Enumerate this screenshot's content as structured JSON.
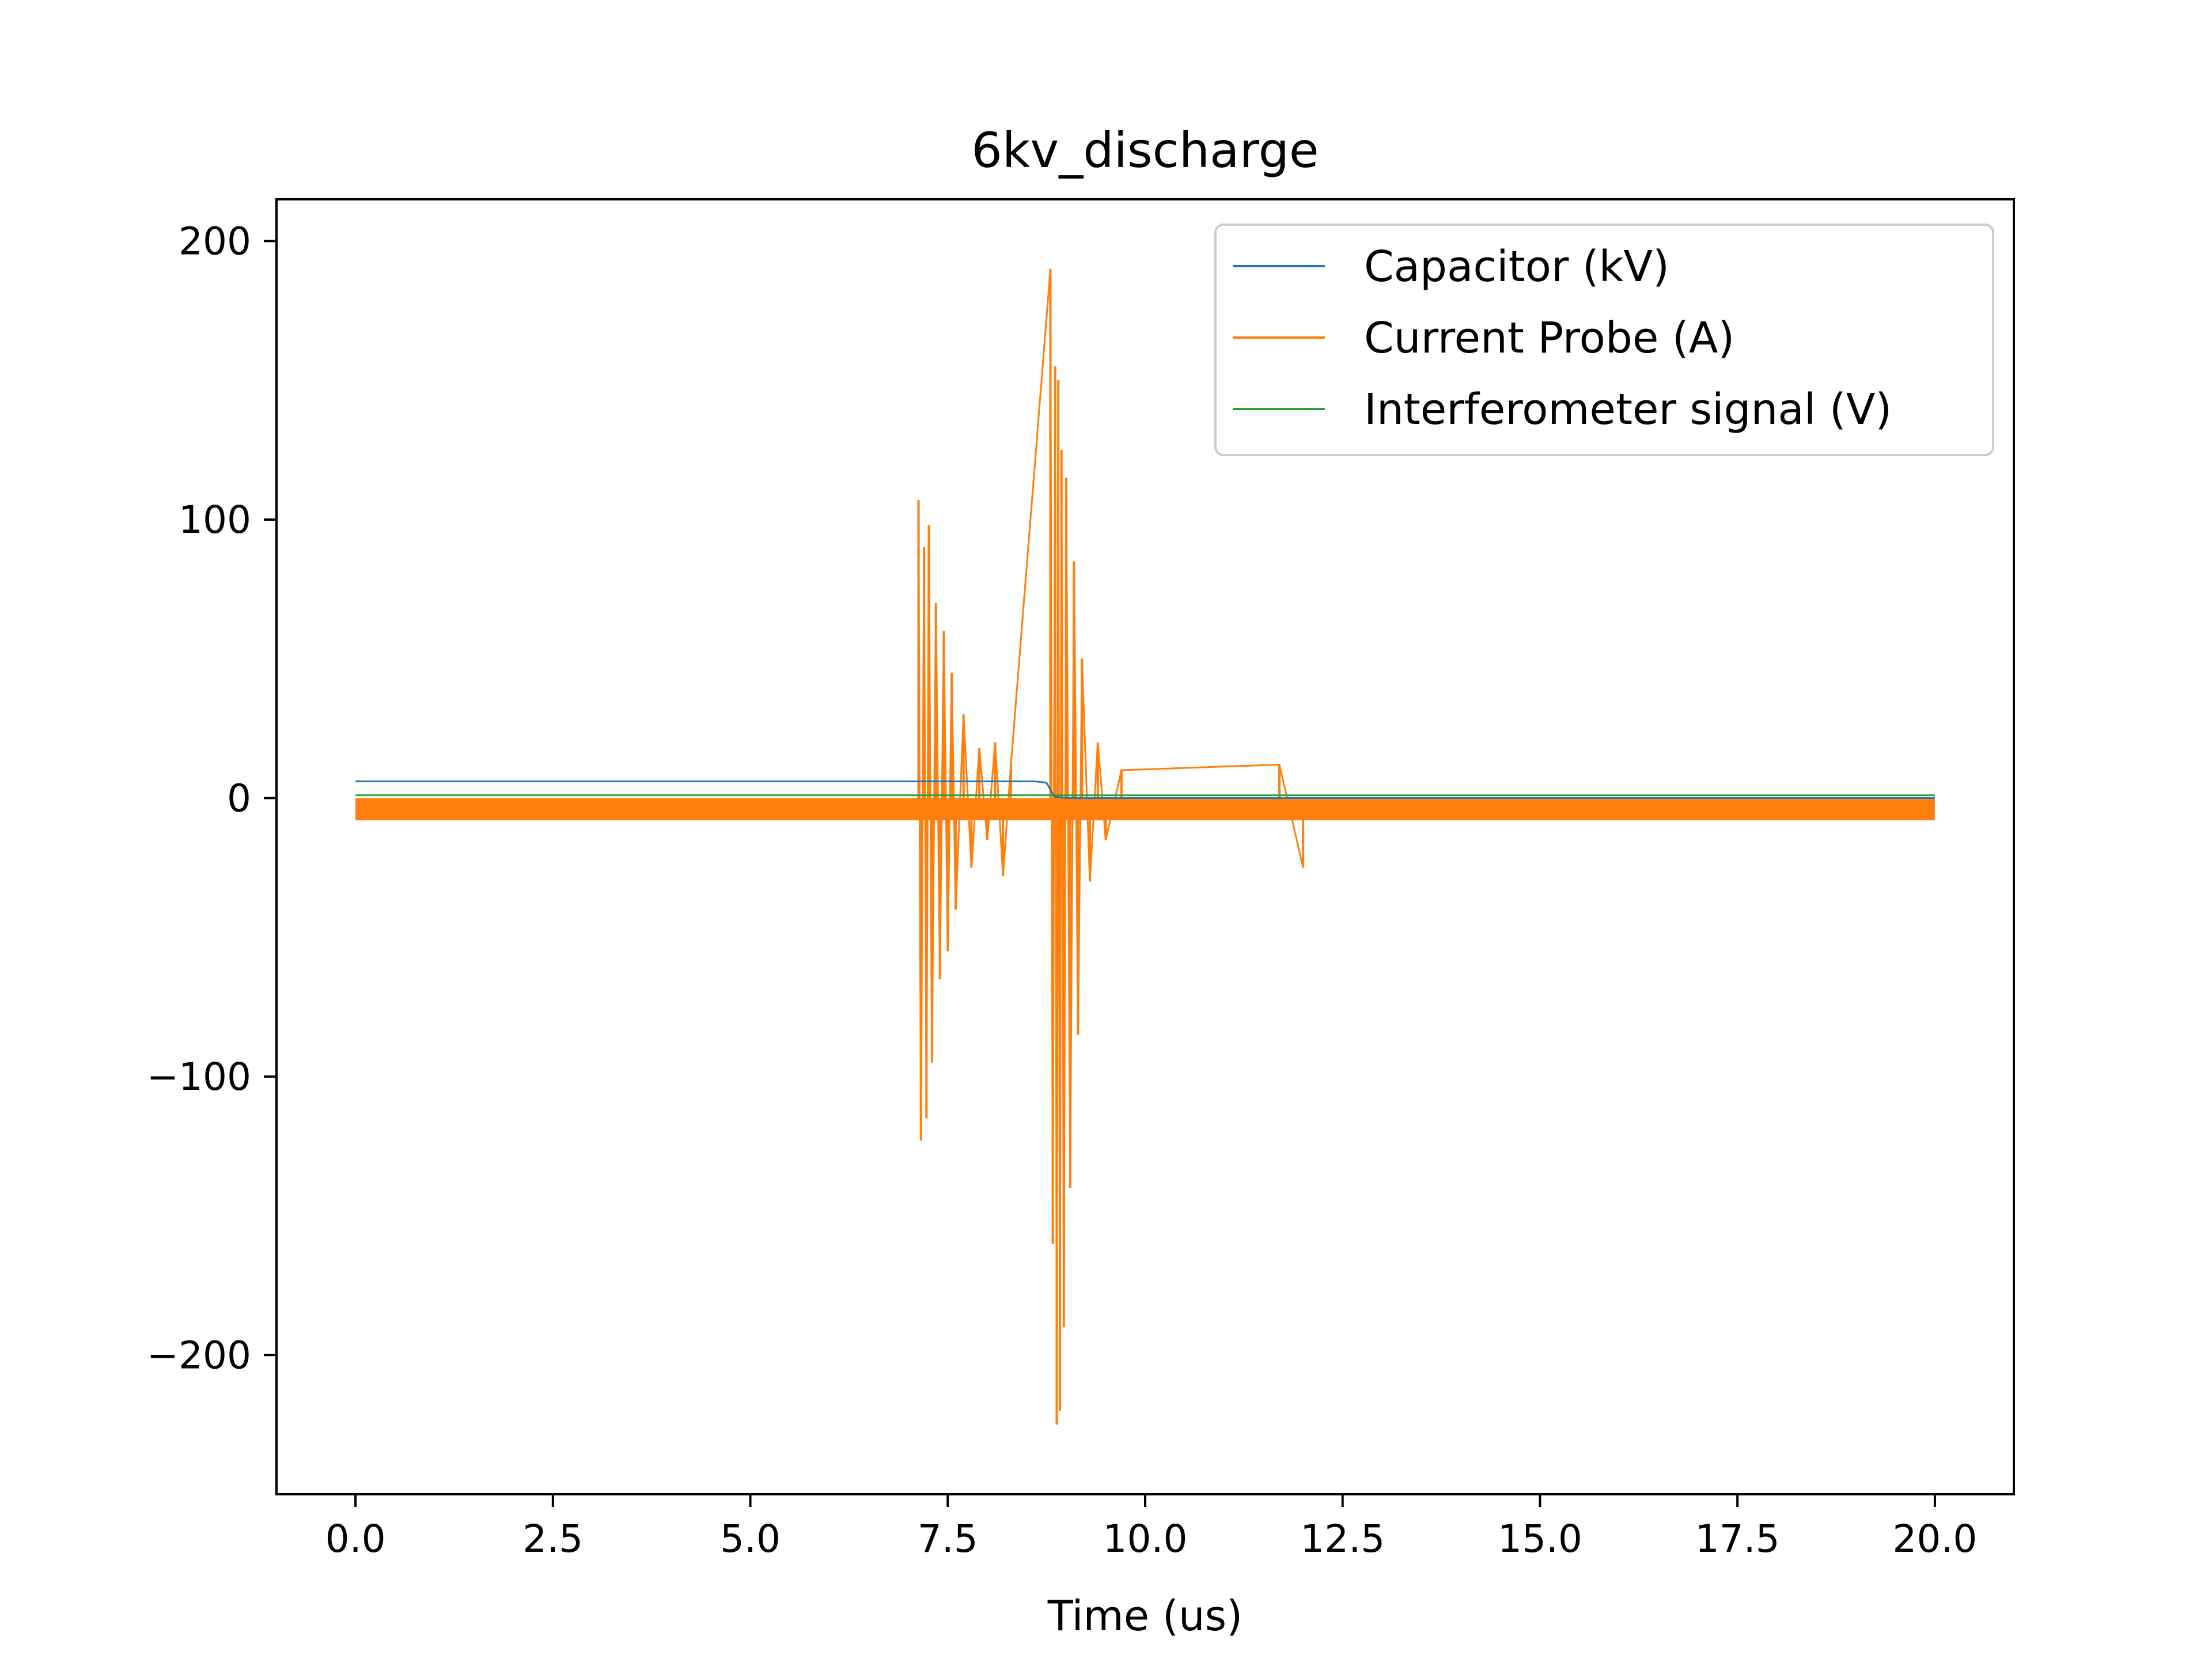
{
  "chart_data": {
    "type": "line",
    "title": "6kv_discharge",
    "xlabel": "Time (us)",
    "ylabel": "",
    "xlim": [
      -1.0,
      21.0
    ],
    "ylim": [
      -250,
      215
    ],
    "xticks": [
      0.0,
      2.5,
      5.0,
      7.5,
      10.0,
      12.5,
      15.0,
      17.5,
      20.0
    ],
    "xtick_labels": [
      "0.0",
      "2.5",
      "5.0",
      "7.5",
      "10.0",
      "12.5",
      "15.0",
      "17.5",
      "20.0"
    ],
    "yticks": [
      -200,
      -100,
      0,
      100,
      200
    ],
    "ytick_labels": [
      "−200",
      "−100",
      "0",
      "100",
      "200"
    ],
    "grid": false,
    "legend_position": "top-right",
    "series": [
      {
        "name": "Capacitor (kV)",
        "color": "#1f77b4",
        "x": [
          0.0,
          8.6,
          8.75,
          8.85,
          9.0,
          20.0
        ],
        "values": [
          6.0,
          6.0,
          5.5,
          0.5,
          0.0,
          0.0
        ]
      },
      {
        "name": "Current Probe (A)",
        "color": "#ff7f0e",
        "baseline_band": [
          -8,
          0
        ],
        "x": [
          7.13,
          7.16,
          7.2,
          7.23,
          7.26,
          7.3,
          7.35,
          7.4,
          7.45,
          7.5,
          7.55,
          7.6,
          7.7,
          7.8,
          7.9,
          8.0,
          8.1,
          8.2,
          8.3,
          8.8,
          8.83,
          8.86,
          8.88,
          8.9,
          8.92,
          8.94,
          8.97,
          9.0,
          9.05,
          9.1,
          9.15,
          9.2,
          9.3,
          9.4,
          9.5,
          9.7,
          11.7,
          12.0
        ],
        "values": [
          107,
          -123,
          90,
          -115,
          98,
          -95,
          70,
          -65,
          60,
          -55,
          45,
          -40,
          30,
          -25,
          18,
          -15,
          20,
          -28,
          12,
          190,
          -160,
          155,
          -225,
          150,
          -220,
          125,
          -190,
          115,
          -140,
          85,
          -85,
          50,
          -30,
          20,
          -15,
          10,
          12,
          -25
        ]
      },
      {
        "name": "Interferometer signal (V)",
        "color": "#2ca02c",
        "x": [
          0.0,
          20.0
        ],
        "values": [
          1.0,
          1.0
        ]
      }
    ]
  }
}
